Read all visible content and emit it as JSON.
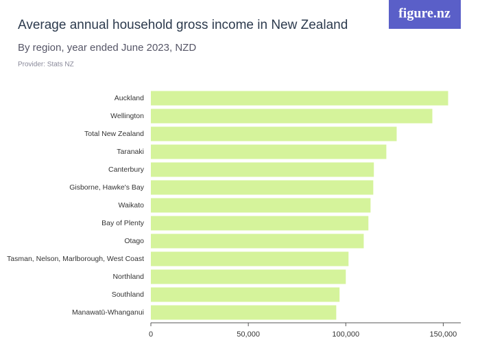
{
  "logo": "figure.nz",
  "chart_data": {
    "type": "barh",
    "title": "Average annual household gross income in New Zealand",
    "subtitle": "By region, year ended June 2023, NZD",
    "provider": "Provider: Stats NZ",
    "categories": [
      "Auckland",
      "Wellington",
      "Total New Zealand",
      "Taranaki",
      "Canterbury",
      "Gisborne, Hawke's Bay",
      "Waikato",
      "Bay of Plenty",
      "Otago",
      "Tasman, Nelson, Marlborough, West Coast",
      "Northland",
      "Southland",
      "Manawatū-Whanganui"
    ],
    "values": [
      152500,
      144400,
      126100,
      120800,
      114400,
      114100,
      112700,
      111600,
      109200,
      101400,
      100000,
      96800,
      95100
    ],
    "color": "#d5f39b",
    "xlim": [
      0,
      159000
    ],
    "xticks": [
      0,
      {
        "value": 50000,
        "label": "50,000"
      },
      {
        "value": 100000,
        "label": "100,000"
      },
      {
        "value": 150000,
        "label": "150,000"
      }
    ]
  }
}
